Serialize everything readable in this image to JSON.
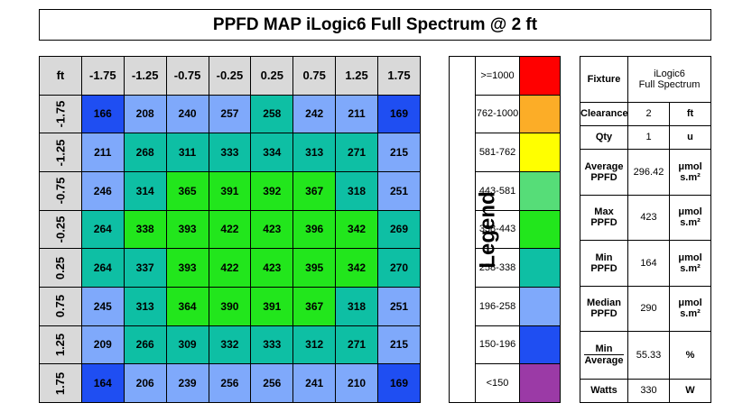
{
  "title": "PPFD MAP iLogic6 Full Spectrum @ 2 ft",
  "chart_data": {
    "type": "heatmap",
    "corner_label": "ft",
    "x": [
      "-1.75",
      "-1.25",
      "-0.75",
      "-0.25",
      "0.25",
      "0.75",
      "1.25",
      "1.75"
    ],
    "y": [
      "-1.75",
      "-1.25",
      "-0.75",
      "-0.25",
      "0.25",
      "0.75",
      "1.25",
      "1.75"
    ],
    "values": [
      [
        166,
        208,
        240,
        257,
        258,
        242,
        211,
        169
      ],
      [
        211,
        268,
        311,
        333,
        334,
        313,
        271,
        215
      ],
      [
        246,
        314,
        365,
        391,
        392,
        367,
        318,
        251
      ],
      [
        264,
        338,
        393,
        422,
        423,
        396,
        342,
        269
      ],
      [
        264,
        337,
        393,
        422,
        423,
        395,
        342,
        270
      ],
      [
        245,
        313,
        364,
        390,
        391,
        367,
        318,
        251
      ],
      [
        209,
        266,
        309,
        332,
        333,
        312,
        271,
        215
      ],
      [
        164,
        206,
        239,
        256,
        256,
        241,
        210,
        169
      ]
    ]
  },
  "legend": {
    "title": "Legend",
    "entries": [
      {
        "label": ">=1000",
        "color": "#ff0000",
        "min": 1000,
        "max": 100000
      },
      {
        "label": "762-1000",
        "color": "#fcad27",
        "min": 762,
        "max": 1000
      },
      {
        "label": "581-762",
        "color": "#ffff00",
        "min": 581,
        "max": 762
      },
      {
        "label": "443-581",
        "color": "#56dd78",
        "min": 443,
        "max": 581
      },
      {
        "label": "338-443",
        "color": "#22e61c",
        "min": 338,
        "max": 443
      },
      {
        "label": "258-338",
        "color": "#0ebfa4",
        "min": 258,
        "max": 338
      },
      {
        "label": "196-258",
        "color": "#7fa9fb",
        "min": 196,
        "max": 258
      },
      {
        "label": "150-196",
        "color": "#1f4ef2",
        "min": 150,
        "max": 196
      },
      {
        "label": "<150",
        "color": "#9b3aa6",
        "min": 0,
        "max": 150
      }
    ]
  },
  "info": {
    "fixture_label": "Fixture",
    "fixture_value_line1": "iLogic6",
    "fixture_value_line2": "Full Spectrum",
    "clearance_label": "Clearance",
    "clearance_value": "2",
    "clearance_unit": "ft",
    "qty_label": "Qty",
    "qty_value": "1",
    "qty_unit": "u",
    "avg_label_1": "Average",
    "avg_label_2": "PPFD",
    "avg_value": "296.42",
    "avg_unit_1": "μmol",
    "avg_unit_2": "s.m²",
    "max_label_1": "Max",
    "max_label_2": "PPFD",
    "max_value": "423",
    "max_unit_1": "μmol",
    "max_unit_2": "s.m²",
    "min_label_1": "Min",
    "min_label_2": "PPFD",
    "min_value": "164",
    "min_unit_1": "μmol",
    "min_unit_2": "s.m²",
    "median_label_1": "Median",
    "median_label_2": "PPFD",
    "median_value": "290",
    "median_unit_1": "μmol",
    "median_unit_2": "s.m²",
    "ratio_num": "Min",
    "ratio_den": "Average",
    "ratio_value": "55.33",
    "ratio_unit": "%",
    "watts_label": "Watts",
    "watts_value": "330",
    "watts_unit": "W"
  }
}
